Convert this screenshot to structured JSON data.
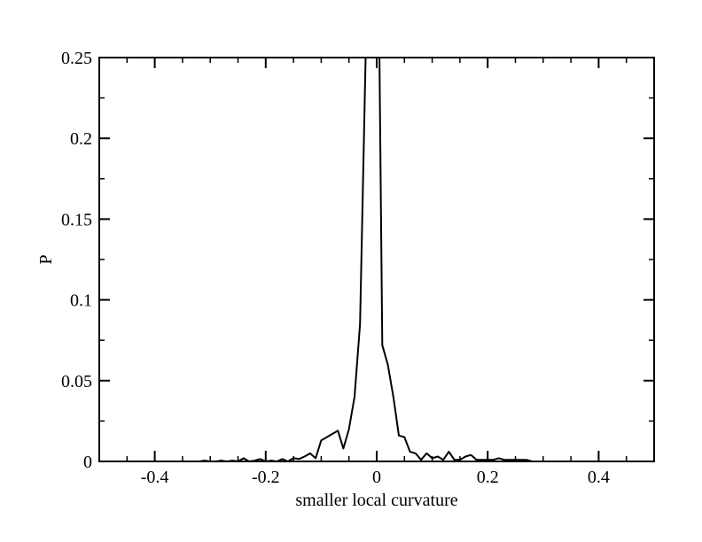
{
  "chart_data": {
    "type": "line",
    "title": "",
    "xlabel": "smaller local curvature",
    "ylabel": "P",
    "xlim": [
      -0.5,
      0.5
    ],
    "ylim": [
      0,
      0.25
    ],
    "x_ticks": [
      -0.4,
      -0.2,
      0,
      0.2,
      0.4
    ],
    "x_tick_labels": [
      "-0.4",
      "-0.2",
      "0",
      "0.2",
      "0.4"
    ],
    "y_ticks": [
      0,
      0.05,
      0.1,
      0.15,
      0.2,
      0.25
    ],
    "y_tick_labels": [
      "0",
      "0.05",
      "0.1",
      "0.15",
      "0.2",
      "0.25"
    ],
    "x_minor_step": 0.05,
    "y_minor_step": 0.025,
    "grid": false,
    "line_color": "#000000",
    "series": [
      {
        "x": [
          -0.32,
          -0.31,
          -0.3,
          -0.29,
          -0.28,
          -0.27,
          -0.26,
          -0.25,
          -0.24,
          -0.23,
          -0.22,
          -0.21,
          -0.2,
          -0.19,
          -0.18,
          -0.17,
          -0.16,
          -0.15,
          -0.14,
          -0.13,
          -0.12,
          -0.11,
          -0.1,
          -0.09,
          -0.08,
          -0.07,
          -0.06,
          -0.05,
          -0.04,
          -0.03,
          -0.02,
          -0.015,
          -0.01,
          -0.005,
          0.0,
          0.005,
          0.01,
          0.02,
          0.03,
          0.04,
          0.05,
          0.06,
          0.07,
          0.08,
          0.09,
          0.1,
          0.11,
          0.12,
          0.13,
          0.14,
          0.15,
          0.16,
          0.17,
          0.18,
          0.19,
          0.2,
          0.21,
          0.22,
          0.23,
          0.24,
          0.25,
          0.26,
          0.27,
          0.28
        ],
        "y": [
          0.0,
          0.0005,
          0.0,
          0.0,
          0.0005,
          0.0,
          0.0005,
          0.0,
          0.002,
          0.0,
          0.0005,
          0.0015,
          0.0,
          0.0005,
          0.0,
          0.0015,
          0.0,
          0.002,
          0.0015,
          0.003,
          0.005,
          0.002,
          0.013,
          0.015,
          0.017,
          0.019,
          0.008,
          0.02,
          0.04,
          0.085,
          0.25,
          0.25,
          0.25,
          0.25,
          0.25,
          0.25,
          0.072,
          0.06,
          0.04,
          0.016,
          0.015,
          0.006,
          0.005,
          0.001,
          0.005,
          0.002,
          0.003,
          0.001,
          0.006,
          0.001,
          0.001,
          0.003,
          0.004,
          0.001,
          0.001,
          0.001,
          0.001,
          0.002,
          0.001,
          0.001,
          0.001,
          0.001,
          0.001,
          0.0
        ]
      }
    ]
  }
}
